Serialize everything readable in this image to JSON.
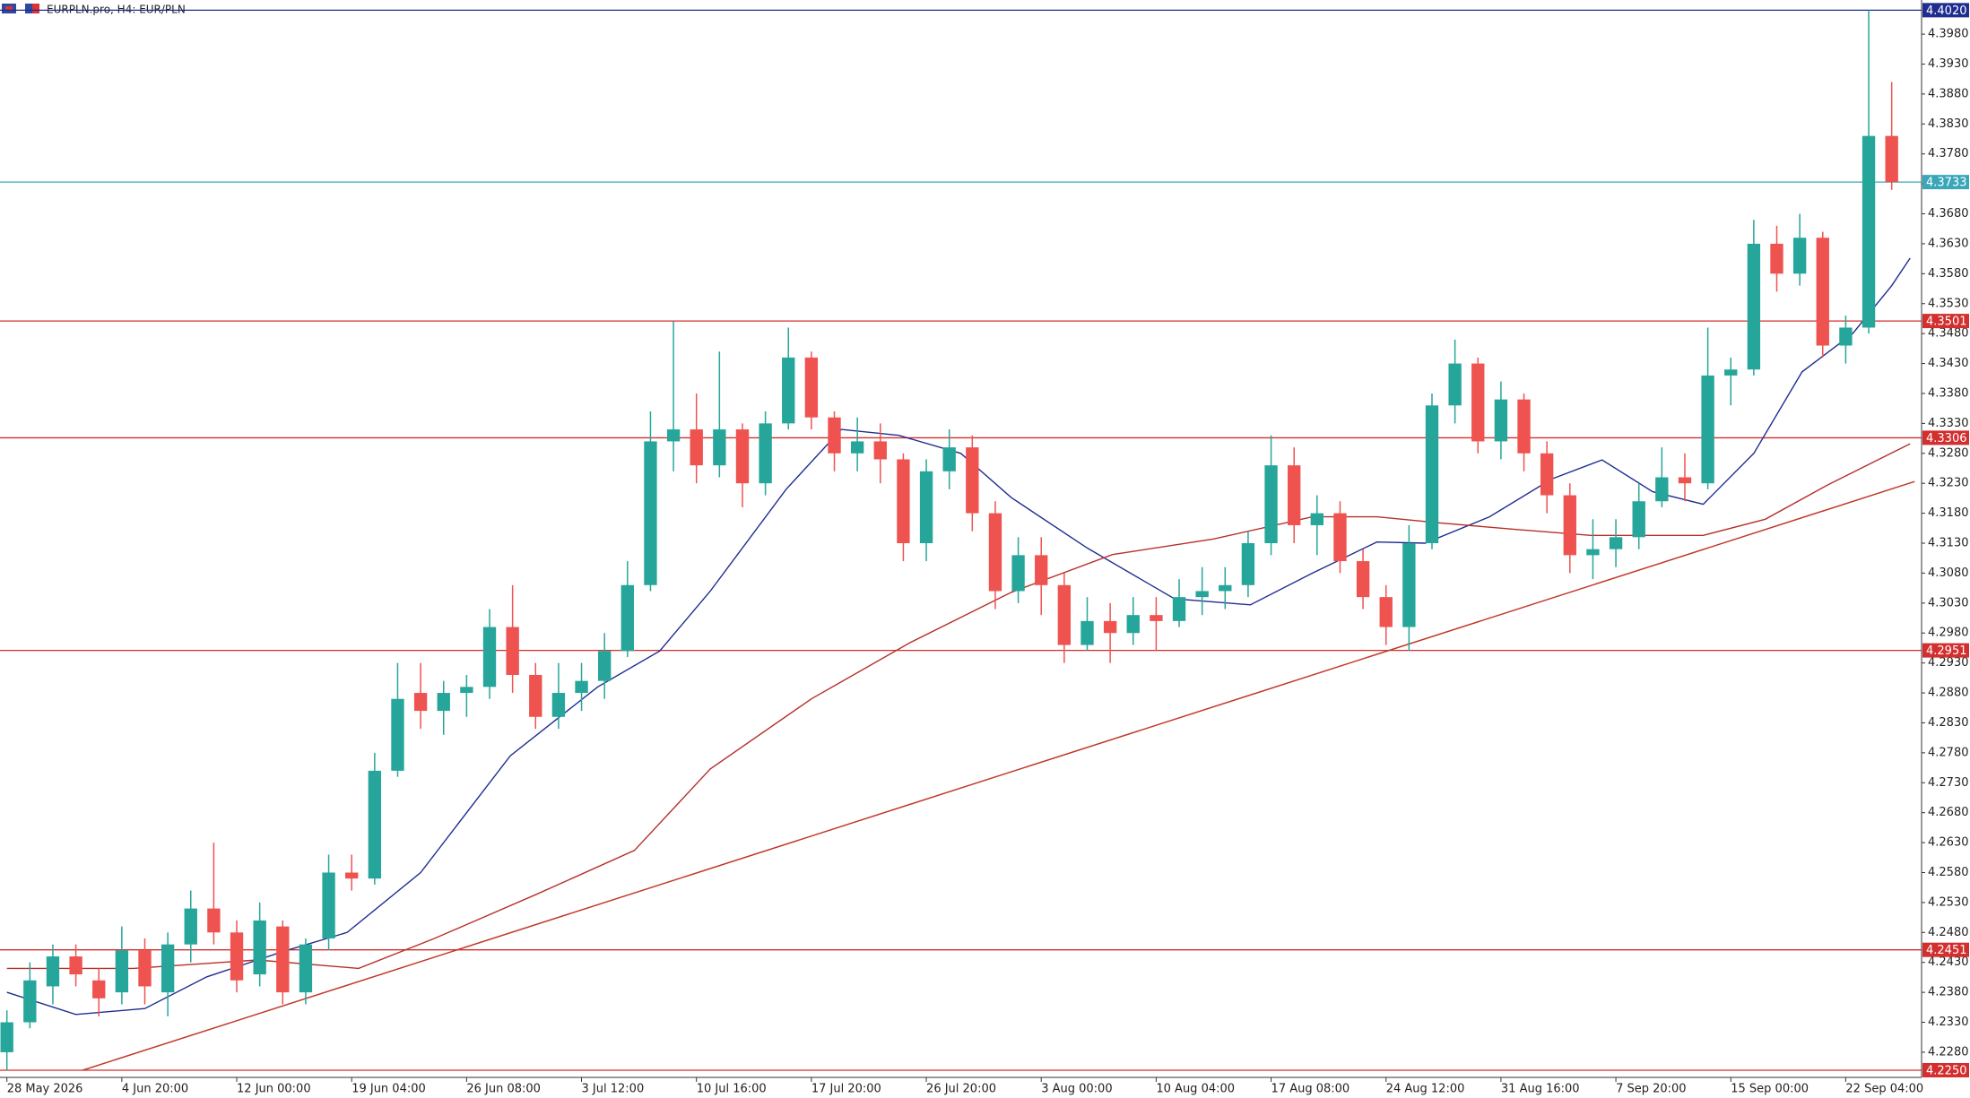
{
  "chart_data": {
    "type": "candlestick",
    "title": "EURPLN.pro, H4:  EUR/PLN",
    "xlim": [
      -0.3,
      83.3
    ],
    "ylim": [
      4.2238,
      4.4037
    ],
    "xticks": [
      {
        "value": 0,
        "label": "28 May 2026"
      },
      {
        "value": 5,
        "label": "4 Jun 20:00"
      },
      {
        "value": 10,
        "label": "12 Jun 00:00"
      },
      {
        "value": 15,
        "label": "19 Jun 04:00"
      },
      {
        "value": 20,
        "label": "26 Jun 08:00"
      },
      {
        "value": 25,
        "label": "3 Jul 12:00"
      },
      {
        "value": 30,
        "label": "10 Jul 16:00"
      },
      {
        "value": 35,
        "label": "17 Jul 20:00"
      },
      {
        "value": 40,
        "label": "26 Jul 20:00"
      },
      {
        "value": 45,
        "label": "3 Aug 00:00"
      },
      {
        "value": 50,
        "label": "10 Aug 04:00"
      },
      {
        "value": 55,
        "label": "17 Aug 08:00"
      },
      {
        "value": 60,
        "label": "24 Aug 12:00"
      },
      {
        "value": 65,
        "label": "31 Aug 16:00"
      },
      {
        "value": 70,
        "label": "7 Sep 20:00"
      },
      {
        "value": 75,
        "label": "15 Sep 00:00"
      },
      {
        "value": 80,
        "label": "22 Sep 04:00"
      }
    ],
    "yticks": [
      {
        "value": 4.228,
        "label": "4.2280"
      },
      {
        "value": 4.233,
        "label": "4.2330"
      },
      {
        "value": 4.238,
        "label": "4.2380"
      },
      {
        "value": 4.243,
        "label": "4.2430"
      },
      {
        "value": 4.248,
        "label": "4.2480"
      },
      {
        "value": 4.253,
        "label": "4.2530"
      },
      {
        "value": 4.258,
        "label": "4.2580"
      },
      {
        "value": 4.263,
        "label": "4.2630"
      },
      {
        "value": 4.268,
        "label": "4.2680"
      },
      {
        "value": 4.273,
        "label": "4.2730"
      },
      {
        "value": 4.278,
        "label": "4.2780"
      },
      {
        "value": 4.283,
        "label": "4.2830"
      },
      {
        "value": 4.288,
        "label": "4.2880"
      },
      {
        "value": 4.293,
        "label": "4.2930"
      },
      {
        "value": 4.298,
        "label": "4.2980"
      },
      {
        "value": 4.303,
        "label": "4.3030"
      },
      {
        "value": 4.308,
        "label": "4.3080"
      },
      {
        "value": 4.313,
        "label": "4.3130"
      },
      {
        "value": 4.318,
        "label": "4.3180"
      },
      {
        "value": 4.323,
        "label": "4.3230"
      },
      {
        "value": 4.328,
        "label": "4.3280"
      },
      {
        "value": 4.333,
        "label": "4.3330"
      },
      {
        "value": 4.338,
        "label": "4.3380"
      },
      {
        "value": 4.343,
        "label": "4.3430"
      },
      {
        "value": 4.348,
        "label": "4.3480"
      },
      {
        "value": 4.353,
        "label": "4.3530"
      },
      {
        "value": 4.358,
        "label": "4.3580"
      },
      {
        "value": 4.363,
        "label": "4.3630"
      },
      {
        "value": 4.368,
        "label": "4.3680"
      },
      {
        "value": 4.373,
        "label": "4.3730"
      },
      {
        "value": 4.378,
        "label": "4.3780"
      },
      {
        "value": 4.383,
        "label": "4.3830"
      },
      {
        "value": 4.388,
        "label": "4.3880"
      },
      {
        "value": 4.393,
        "label": "4.3930"
      },
      {
        "value": 4.398,
        "label": "4.3980"
      }
    ],
    "up_color": "#26a69a",
    "down_color": "#ef5350",
    "candles": [
      [
        4.228,
        4.235,
        4.225,
        4.233
      ],
      [
        4.233,
        4.243,
        4.232,
        4.24
      ],
      [
        4.239,
        4.246,
        4.236,
        4.244
      ],
      [
        4.244,
        4.246,
        4.239,
        4.241
      ],
      [
        4.24,
        4.242,
        4.234,
        4.237
      ],
      [
        4.238,
        4.249,
        4.236,
        4.245
      ],
      [
        4.245,
        4.247,
        4.236,
        4.239
      ],
      [
        4.238,
        4.248,
        4.234,
        4.246
      ],
      [
        4.246,
        4.255,
        4.243,
        4.252
      ],
      [
        4.252,
        4.263,
        4.246,
        4.248
      ],
      [
        4.248,
        4.25,
        4.238,
        4.24
      ],
      [
        4.241,
        4.253,
        4.239,
        4.25
      ],
      [
        4.249,
        4.25,
        4.236,
        4.238
      ],
      [
        4.238,
        4.247,
        4.236,
        4.246
      ],
      [
        4.247,
        4.261,
        4.245,
        4.258
      ],
      [
        4.258,
        4.261,
        4.255,
        4.257
      ],
      [
        4.257,
        4.278,
        4.256,
        4.275
      ],
      [
        4.275,
        4.293,
        4.274,
        4.287
      ],
      [
        4.288,
        4.293,
        4.282,
        4.285
      ],
      [
        4.285,
        4.29,
        4.281,
        4.288
      ],
      [
        4.288,
        4.291,
        4.284,
        4.289
      ],
      [
        4.289,
        4.302,
        4.287,
        4.299
      ],
      [
        4.299,
        4.306,
        4.288,
        4.291
      ],
      [
        4.291,
        4.293,
        4.282,
        4.284
      ],
      [
        4.284,
        4.293,
        4.282,
        4.288
      ],
      [
        4.288,
        4.293,
        4.285,
        4.29
      ],
      [
        4.29,
        4.298,
        4.287,
        4.295
      ],
      [
        4.295,
        4.31,
        4.294,
        4.306
      ],
      [
        4.306,
        4.335,
        4.305,
        4.33
      ],
      [
        4.33,
        4.35,
        4.325,
        4.332
      ],
      [
        4.332,
        4.338,
        4.323,
        4.326
      ],
      [
        4.326,
        4.345,
        4.324,
        4.332
      ],
      [
        4.332,
        4.333,
        4.319,
        4.323
      ],
      [
        4.323,
        4.335,
        4.321,
        4.333
      ],
      [
        4.333,
        4.349,
        4.332,
        4.344
      ],
      [
        4.344,
        4.345,
        4.332,
        4.334
      ],
      [
        4.334,
        4.335,
        4.325,
        4.328
      ],
      [
        4.328,
        4.334,
        4.325,
        4.33
      ],
      [
        4.33,
        4.333,
        4.323,
        4.327
      ],
      [
        4.327,
        4.328,
        4.31,
        4.313
      ],
      [
        4.313,
        4.327,
        4.31,
        4.325
      ],
      [
        4.325,
        4.332,
        4.322,
        4.329
      ],
      [
        4.329,
        4.331,
        4.315,
        4.318
      ],
      [
        4.318,
        4.32,
        4.302,
        4.305
      ],
      [
        4.305,
        4.314,
        4.303,
        4.311
      ],
      [
        4.311,
        4.314,
        4.301,
        4.306
      ],
      [
        4.306,
        4.308,
        4.293,
        4.296
      ],
      [
        4.296,
        4.304,
        4.295,
        4.3
      ],
      [
        4.3,
        4.303,
        4.293,
        4.298
      ],
      [
        4.298,
        4.304,
        4.296,
        4.301
      ],
      [
        4.301,
        4.304,
        4.295,
        4.3
      ],
      [
        4.3,
        4.307,
        4.299,
        4.304
      ],
      [
        4.304,
        4.309,
        4.301,
        4.305
      ],
      [
        4.305,
        4.309,
        4.302,
        4.306
      ],
      [
        4.306,
        4.315,
        4.304,
        4.313
      ],
      [
        4.313,
        4.331,
        4.311,
        4.326
      ],
      [
        4.326,
        4.329,
        4.313,
        4.316
      ],
      [
        4.316,
        4.321,
        4.311,
        4.318
      ],
      [
        4.318,
        4.32,
        4.308,
        4.31
      ],
      [
        4.31,
        4.312,
        4.302,
        4.304
      ],
      [
        4.304,
        4.306,
        4.296,
        4.299
      ],
      [
        4.299,
        4.316,
        4.295,
        4.313
      ],
      [
        4.313,
        4.338,
        4.312,
        4.336
      ],
      [
        4.336,
        4.347,
        4.333,
        4.343
      ],
      [
        4.343,
        4.344,
        4.328,
        4.33
      ],
      [
        4.33,
        4.34,
        4.327,
        4.337
      ],
      [
        4.337,
        4.338,
        4.325,
        4.328
      ],
      [
        4.328,
        4.33,
        4.318,
        4.321
      ],
      [
        4.321,
        4.323,
        4.308,
        4.311
      ],
      [
        4.311,
        4.317,
        4.307,
        4.312
      ],
      [
        4.312,
        4.317,
        4.309,
        4.314
      ],
      [
        4.314,
        4.323,
        4.312,
        4.32
      ],
      [
        4.32,
        4.329,
        4.319,
        4.324
      ],
      [
        4.324,
        4.328,
        4.32,
        4.323
      ],
      [
        4.323,
        4.349,
        4.322,
        4.341
      ],
      [
        4.341,
        4.344,
        4.336,
        4.342
      ],
      [
        4.342,
        4.367,
        4.341,
        4.363
      ],
      [
        4.363,
        4.366,
        4.355,
        4.358
      ],
      [
        4.358,
        4.368,
        4.356,
        4.364
      ],
      [
        4.364,
        4.365,
        4.344,
        4.346
      ],
      [
        4.346,
        4.351,
        4.343,
        4.349
      ],
      [
        4.349,
        4.402,
        4.348,
        4.381
      ],
      [
        4.381,
        4.39,
        4.372,
        4.3733
      ]
    ],
    "series": [
      {
        "color": "#1f2d8f",
        "x": [
          0,
          3,
          6,
          8.7,
          12,
          14.8,
          18,
          21.9,
          25.7,
          28.4,
          30.6,
          33.9,
          36.3,
          38.8,
          41.5,
          43.7,
          47,
          50.8,
          54.1,
          56.8,
          59.6,
          61.7,
          64.5,
          67.2,
          69.4,
          71.6,
          73.8,
          76,
          78.1,
          80.3,
          82,
          82.8
        ],
        "values": [
          4.238,
          4.2343,
          4.2353,
          4.2406,
          4.2448,
          4.248,
          4.258,
          4.2775,
          4.289,
          4.295,
          4.305,
          4.322,
          4.332,
          4.331,
          4.328,
          4.3206,
          4.3122,
          4.3037,
          4.3027,
          4.308,
          4.3132,
          4.313,
          4.3174,
          4.3237,
          4.3269,
          4.3216,
          4.3195,
          4.328,
          4.3416,
          4.348,
          4.356,
          4.3606
        ]
      },
      {
        "color": "#b5302a",
        "x": [
          0,
          5.5,
          10.9,
          15.3,
          18.6,
          23,
          27.3,
          30.6,
          35,
          39.3,
          43.7,
          48.1,
          52.5,
          56.8,
          59.6,
          62.3,
          65.6,
          68.9,
          73.8,
          76.5,
          79.2,
          82.8
        ],
        "values": [
          4.242,
          4.242,
          4.2434,
          4.242,
          4.247,
          4.2543,
          4.2617,
          4.2753,
          4.287,
          4.2964,
          4.3048,
          4.3111,
          4.3137,
          4.3174,
          4.3174,
          4.3164,
          4.3153,
          4.3143,
          4.3143,
          4.317,
          4.3227,
          4.3296
        ]
      }
    ],
    "trendline": {
      "color": "#c0392b",
      "x": [
        3.3,
        83.0
      ],
      "values": [
        4.225,
        4.3233
      ]
    },
    "hlines": [
      {
        "price": 4.402,
        "label": "4.4020",
        "color": "#1f2d8f"
      },
      {
        "price": 4.3733,
        "label": "4.3733",
        "color": "#3aa7b8"
      },
      {
        "price": 4.3501,
        "label": "4.3501",
        "color": "#d32f2f"
      },
      {
        "price": 4.3306,
        "label": "4.3306",
        "color": "#d32f2f"
      },
      {
        "price": 4.2951,
        "label": "4.2951",
        "color": "#d32f2f"
      },
      {
        "price": 4.2451,
        "label": "4.2451",
        "color": "#d32f2f"
      },
      {
        "price": 4.225,
        "label": "4.2250",
        "color": "#d32f2f"
      }
    ]
  }
}
